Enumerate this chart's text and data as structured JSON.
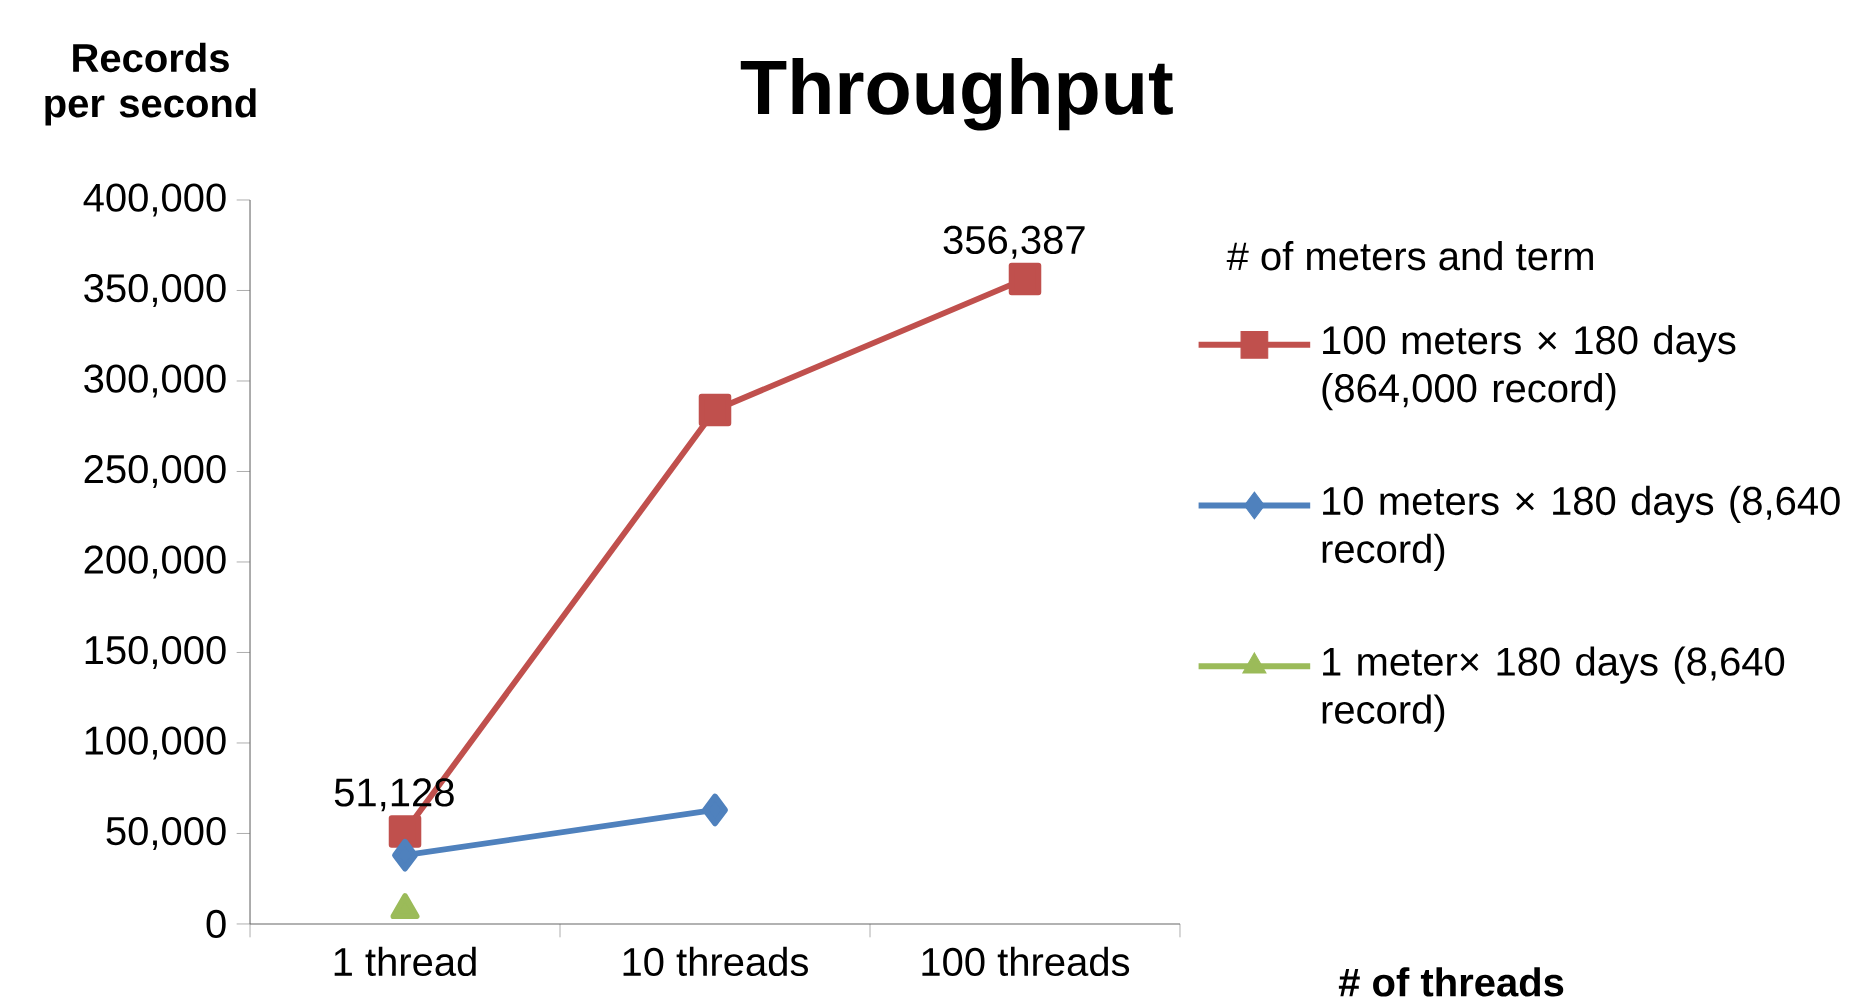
{
  "chart_data": {
    "type": "line",
    "title": "Throughput",
    "xlabel": "# of threads",
    "ylabel": "Records per second",
    "legend_title": "# of meters and term",
    "categories": [
      "1 thread",
      "10 threads",
      "100 threads"
    ],
    "series": [
      {
        "name": "100 meters × 180 days (864,000 record)",
        "color": "#c0504d",
        "marker": "square",
        "values": [
          51128,
          284000,
          356387
        ],
        "value_labels": [
          "51,128",
          null,
          "356,387"
        ]
      },
      {
        "name": "10 meters × 180 days (8,640 record)",
        "color": "#4f81bd",
        "marker": "diamond",
        "values": [
          38000,
          63000,
          null
        ]
      },
      {
        "name": "1 meter× 180 days (8,640 record)",
        "color": "#9bbb59",
        "marker": "triangle",
        "values": [
          8000,
          null,
          null
        ]
      }
    ],
    "ylim": [
      0,
      400000
    ],
    "yticks": [
      0,
      {
        "value": 50000,
        "label": "50,000"
      },
      {
        "value": 100000,
        "label": "100,000"
      },
      {
        "value": 150000,
        "label": "150,000"
      },
      {
        "value": 200000,
        "label": "200,000"
      },
      {
        "value": 250000,
        "label": "250,000"
      },
      {
        "value": 300000,
        "label": "300,000"
      },
      {
        "value": 350000,
        "label": "350,000"
      },
      {
        "value": 400000,
        "label": "400,000"
      }
    ],
    "grid": false,
    "legend": "right",
    "line_style": "solid"
  }
}
